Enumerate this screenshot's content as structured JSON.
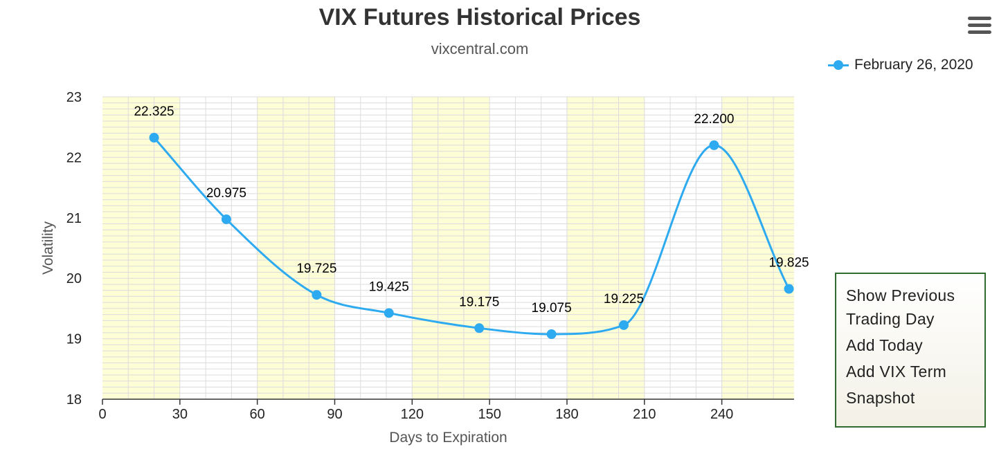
{
  "chart_data": {
    "type": "line",
    "title": "VIX Futures Historical Prices",
    "subtitle": "vixcentral.com",
    "xlabel": "Days to Expiration",
    "ylabel": "Volatility",
    "xlim": [
      0,
      268
    ],
    "ylim": [
      18,
      23
    ],
    "x_ticks": [
      "0",
      "30",
      "60",
      "90",
      "120",
      "150",
      "180",
      "210",
      "240"
    ],
    "y_ticks": [
      "18",
      "19",
      "20",
      "21",
      "22",
      "23"
    ],
    "smooth": true,
    "grid": true,
    "legend_position": "top-right",
    "series": [
      {
        "name": "February 26, 2020",
        "color": "#2eaaf0",
        "x": [
          20,
          48,
          83,
          111,
          146,
          174,
          202,
          237,
          266
        ],
        "y": [
          22.325,
          20.975,
          19.725,
          19.425,
          19.175,
          19.075,
          19.225,
          22.2,
          19.825
        ],
        "labels": [
          "22.325",
          "20.975",
          "19.725",
          "19.425",
          "19.175",
          "19.075",
          "19.225",
          "22.200",
          "19.825"
        ]
      }
    ]
  },
  "menu": {
    "icon": "hamburger-icon",
    "items": [
      "Show Previous Trading Day",
      "Add Today",
      "Add VIX Term",
      "Snapshot"
    ]
  },
  "colors": {
    "band": "#fdfdd6",
    "grid": "#dcdcdc",
    "series": "#2eaaf0"
  }
}
